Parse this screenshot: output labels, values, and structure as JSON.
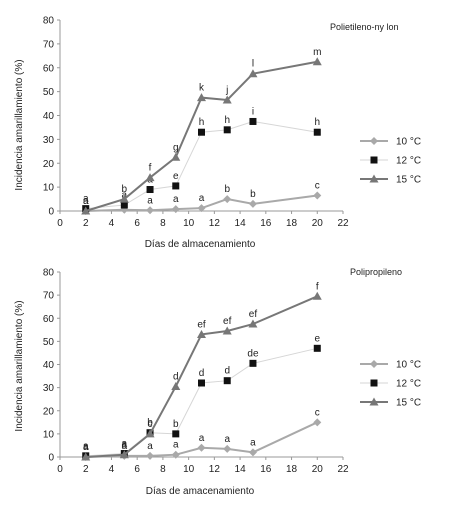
{
  "chart_data": [
    {
      "type": "line",
      "title": "Polietileno-ny lon",
      "xlabel": "Días de almacenamiento",
      "ylabel": "Incidencia amarillamiento (%)",
      "xlim": [
        0,
        22
      ],
      "ylim": [
        0,
        80
      ],
      "xticks": [
        0,
        2,
        4,
        6,
        8,
        10,
        12,
        14,
        16,
        18,
        20,
        22
      ],
      "yticks": [
        0,
        10,
        20,
        30,
        40,
        50,
        60,
        70,
        80
      ],
      "grid": false,
      "legend_position": "right",
      "series": [
        {
          "name": "10 °C",
          "marker": "diamond",
          "color": "#a9a9a9",
          "x": [
            2,
            5,
            7,
            9,
            11,
            13,
            15,
            20
          ],
          "y": [
            0,
            0.5,
            0.3,
            0.8,
            1.2,
            5,
            3,
            6.5
          ],
          "labels": [
            "a",
            "a",
            "a",
            "a",
            "a",
            "b",
            "b",
            "c"
          ]
        },
        {
          "name": "12 °C",
          "marker": "square",
          "color": "#d6d6d6",
          "x": [
            2,
            5,
            7,
            9,
            11,
            13,
            15,
            20
          ],
          "y": [
            1,
            2.5,
            9,
            10.5,
            33,
            34,
            37.5,
            33
          ],
          "labels": [
            "a",
            "a",
            "a",
            "e",
            "h",
            "h",
            "i",
            "h"
          ]
        },
        {
          "name": "15 °C",
          "marker": "triangle",
          "color": "#777777",
          "x": [
            2,
            5,
            7,
            9,
            11,
            13,
            15,
            20
          ],
          "y": [
            0,
            5,
            14,
            22.5,
            47.5,
            46.5,
            57.5,
            62.5
          ],
          "labels": [
            "a",
            "b",
            "f",
            "g",
            "k",
            "j",
            "l",
            "m"
          ]
        }
      ]
    },
    {
      "type": "line",
      "title": "Polipropileno",
      "xlabel": "Días de amacenamiento",
      "ylabel": "Incidencia amarillamiento (%)",
      "xlim": [
        0,
        22
      ],
      "ylim": [
        0,
        80
      ],
      "xticks": [
        0,
        2,
        4,
        6,
        8,
        10,
        12,
        14,
        16,
        18,
        20,
        22
      ],
      "yticks": [
        0,
        10,
        20,
        30,
        40,
        50,
        60,
        70,
        80
      ],
      "grid": false,
      "legend_position": "right",
      "series": [
        {
          "name": "10 °C",
          "marker": "diamond",
          "color": "#a9a9a9",
          "x": [
            2,
            5,
            7,
            9,
            11,
            13,
            15,
            20
          ],
          "y": [
            0,
            0.5,
            0.5,
            1,
            4,
            3.5,
            2,
            15
          ],
          "labels": [
            "a",
            "a",
            "a",
            "a",
            "a",
            "a",
            "a",
            "c"
          ]
        },
        {
          "name": "12 °C",
          "marker": "square",
          "color": "#d6d6d6",
          "x": [
            2,
            5,
            7,
            9,
            11,
            13,
            15,
            20
          ],
          "y": [
            0.5,
            1.5,
            10.5,
            10,
            32,
            33,
            40.5,
            47
          ],
          "labels": [
            "a",
            "a",
            "b",
            "b",
            "d",
            "d",
            "de",
            "e"
          ]
        },
        {
          "name": "15 °C",
          "marker": "triangle",
          "color": "#777777",
          "x": [
            2,
            5,
            7,
            9,
            11,
            13,
            15,
            20
          ],
          "y": [
            0,
            1,
            10,
            30.5,
            53,
            54.5,
            57.5,
            69.5
          ],
          "labels": [
            "a",
            "a",
            "c",
            "d",
            "ef",
            "ef",
            "ef",
            "f"
          ]
        }
      ]
    }
  ]
}
